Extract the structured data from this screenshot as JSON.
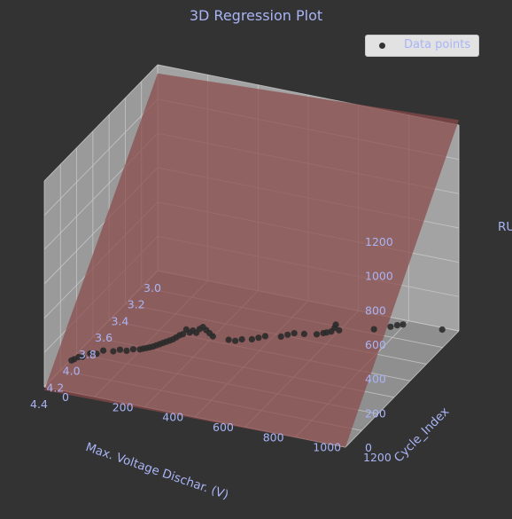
{
  "colors": {
    "background": "#333333",
    "pane": "#a0a0a0",
    "grid": "#c8c8c8",
    "text": "#a9b4f5",
    "points": "#2b2b2b",
    "plane": "#8a4a4a"
  },
  "chart_data": {
    "type": "scatter",
    "projection": "3d",
    "title": "3D Regression Plot",
    "xlabel": "Max. Voltage Dischar. (V)",
    "ylabel": "Cycle_Index",
    "zlabel": "RUL",
    "xticks": [
      "3.0",
      "3.2",
      "3.4",
      "3.6",
      "3.8",
      "4.0",
      "4.2",
      "4.4"
    ],
    "yticks": [
      "0",
      "200",
      "400",
      "600",
      "800",
      "1000",
      "1200"
    ],
    "zticks": [
      "0",
      "200",
      "400",
      "600",
      "800",
      "1000",
      "1200"
    ],
    "xlim": [
      3.0,
      4.4
    ],
    "ylim": [
      0,
      1200
    ],
    "zlim": [
      0,
      1200
    ],
    "grid": true,
    "legend": {
      "position": "top-right",
      "entries": [
        "Data points"
      ]
    },
    "regression_plane": {
      "color": "#8a4a4a"
    },
    "series": [
      {
        "name": "Data points",
        "points": [
          [
            3.02,
            1140,
            0
          ],
          [
            3.1,
            1010,
            30
          ],
          [
            3.11,
            990,
            25
          ],
          [
            3.13,
            970,
            20
          ],
          [
            3.18,
            920,
            15
          ],
          [
            3.27,
            810,
            20
          ],
          [
            3.28,
            800,
            55
          ],
          [
            3.28,
            795,
            35
          ],
          [
            3.29,
            785,
            15
          ],
          [
            3.3,
            770,
            10
          ],
          [
            3.31,
            760,
            8
          ],
          [
            3.33,
            740,
            5
          ],
          [
            3.36,
            700,
            10
          ],
          [
            3.39,
            670,
            20
          ],
          [
            3.41,
            650,
            15
          ],
          [
            3.43,
            630,
            8
          ],
          [
            3.47,
            580,
            15
          ],
          [
            3.49,
            560,
            10
          ],
          [
            3.51,
            540,
            5
          ],
          [
            3.54,
            510,
            10
          ],
          [
            3.56,
            490,
            5
          ],
          [
            3.58,
            470,
            15
          ],
          [
            3.62,
            420,
            40
          ],
          [
            3.63,
            410,
            60
          ],
          [
            3.64,
            400,
            80
          ],
          [
            3.65,
            390,
            100
          ],
          [
            3.66,
            380,
            90
          ],
          [
            3.67,
            370,
            70
          ],
          [
            3.68,
            360,
            85
          ],
          [
            3.69,
            350,
            75
          ],
          [
            3.7,
            340,
            95
          ],
          [
            3.71,
            330,
            70
          ],
          [
            3.72,
            320,
            65
          ],
          [
            3.73,
            310,
            55
          ],
          [
            3.74,
            300,
            45
          ],
          [
            3.75,
            290,
            40
          ],
          [
            3.76,
            280,
            35
          ],
          [
            3.77,
            270,
            30
          ],
          [
            3.78,
            260,
            25
          ],
          [
            3.79,
            250,
            20
          ],
          [
            3.8,
            240,
            15
          ],
          [
            3.81,
            230,
            12
          ],
          [
            3.82,
            220,
            10
          ],
          [
            3.83,
            210,
            8
          ],
          [
            3.84,
            200,
            6
          ],
          [
            3.86,
            180,
            10
          ],
          [
            3.88,
            160,
            5
          ],
          [
            3.9,
            140,
            15
          ],
          [
            3.92,
            120,
            10
          ],
          [
            3.95,
            90,
            20
          ],
          [
            3.97,
            70,
            5
          ],
          [
            3.99,
            50,
            10
          ],
          [
            4.02,
            30,
            0
          ],
          [
            4.04,
            20,
            5
          ],
          [
            4.06,
            10,
            0
          ],
          [
            4.08,
            5,
            0
          ]
        ]
      }
    ]
  }
}
